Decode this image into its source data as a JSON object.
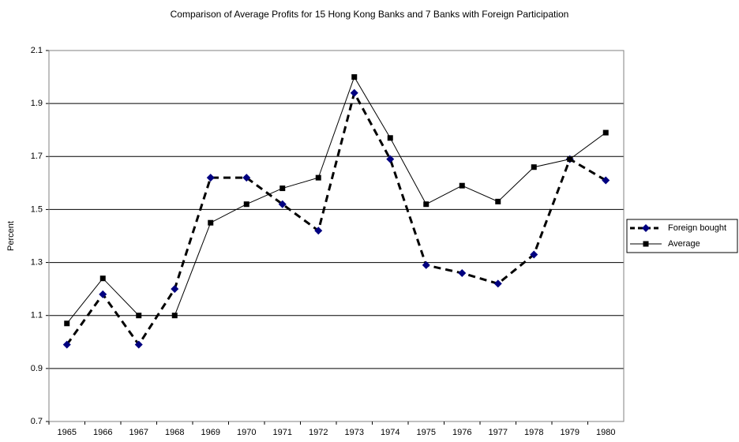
{
  "chart_data": {
    "type": "line",
    "title": "Comparison of Average Profits for 15 Hong Kong Banks and 7 Banks with Foreign Participation",
    "y_label": "Percent",
    "categories": [
      "1965",
      "1966",
      "1967",
      "1968",
      "1969",
      "1970",
      "1971",
      "1972",
      "1973",
      "1974",
      "1975",
      "1976",
      "1977",
      "1978",
      "1979",
      "1980"
    ],
    "series": [
      {
        "name": "Foreign bought",
        "color": "#000080",
        "line_color": "#000000",
        "dashed": true,
        "marker": "diamond",
        "values": [
          0.99,
          1.18,
          0.99,
          1.2,
          1.62,
          1.62,
          1.52,
          1.42,
          1.94,
          1.69,
          1.29,
          1.26,
          1.22,
          1.33,
          1.69,
          1.61
        ]
      },
      {
        "name": "Average",
        "color": "#000000",
        "line_color": "#000000",
        "dashed": false,
        "marker": "square",
        "values": [
          1.07,
          1.24,
          1.1,
          1.1,
          1.45,
          1.52,
          1.58,
          1.62,
          2.0,
          1.77,
          1.52,
          1.59,
          1.53,
          1.66,
          1.69,
          1.79
        ]
      }
    ],
    "ylim": [
      0.7,
      2.1
    ],
    "yticks": [
      0.7,
      0.9,
      1.1,
      1.3,
      1.5,
      1.7,
      1.9,
      2.1
    ],
    "grid": true,
    "legend": "right"
  }
}
